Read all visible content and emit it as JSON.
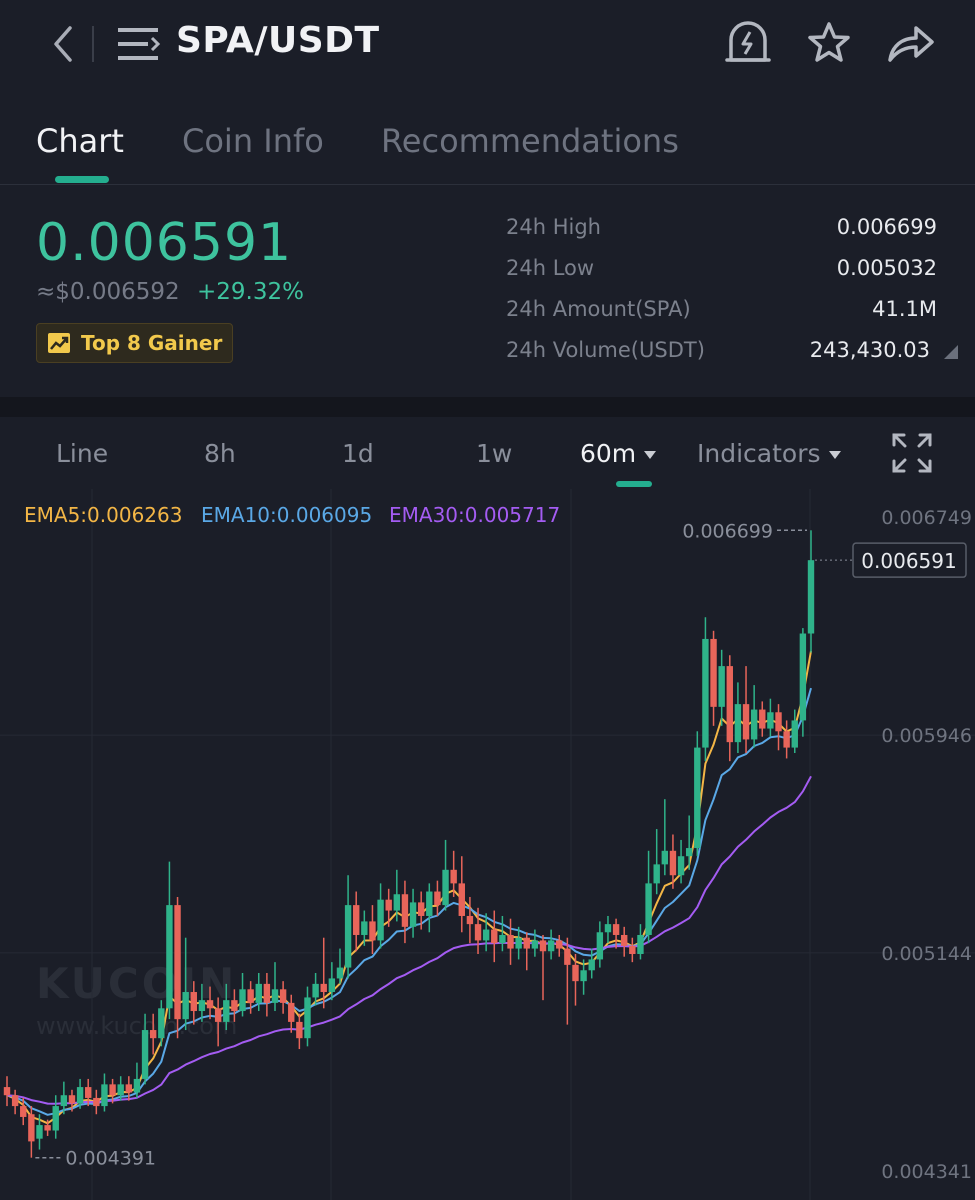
{
  "header": {
    "title": "SPA/USDT",
    "icons": [
      "back-icon",
      "menu-icon",
      "price-alert-icon",
      "favorite-star-icon",
      "share-icon"
    ]
  },
  "tabs": [
    {
      "label": "Chart",
      "active": true
    },
    {
      "label": "Coin Info",
      "active": false
    },
    {
      "label": "Recommendations",
      "active": false
    }
  ],
  "ticker": {
    "price": "0.006591",
    "usd_price": "≈$0.006592",
    "change": "+29.32%",
    "badge": "Top 8 Gainer",
    "stats": [
      {
        "label": "24h High",
        "value": "0.006699"
      },
      {
        "label": "24h Low",
        "value": "0.005032"
      },
      {
        "label": "24h Amount(SPA)",
        "value": "41.1M"
      },
      {
        "label": "24h Volume(USDT)",
        "value": "243,430.03"
      }
    ]
  },
  "timeframes": [
    {
      "label": "Line",
      "active": false
    },
    {
      "label": "8h",
      "active": false
    },
    {
      "label": "1d",
      "active": false
    },
    {
      "label": "1w",
      "active": false
    },
    {
      "label": "60m",
      "active": true,
      "dropdown": true
    },
    {
      "label": "Indicators",
      "active": false,
      "dropdown": true
    }
  ],
  "colors": {
    "up": "#2fb38a",
    "down": "#e8655a",
    "ema5": "#f3b646",
    "ema10": "#5aa8e6",
    "ema30": "#a45cf2",
    "accent": "#24ae8f"
  },
  "watermark": {
    "logo": "KUCOIN",
    "url": "www.kucoin.com"
  },
  "chart_data": {
    "type": "candlestick",
    "interval": "60m",
    "indicators": [
      {
        "name": "EMA5",
        "label": "EMA5:0.006263"
      },
      {
        "name": "EMA10",
        "label": "EMA10:0.006095"
      },
      {
        "name": "EMA30",
        "label": "EMA30:0.005717"
      }
    ],
    "y_ticks": [
      "0.006749",
      "0.005946",
      "0.005144",
      "0.004341"
    ],
    "ylim": [
      0.004341,
      0.006749
    ],
    "last_price_label": "0.006591",
    "max_label": "0.006699",
    "min_label": "0.004391",
    "candles": [
      [
        0.00465,
        0.00462,
        0.00469,
        0.00458
      ],
      [
        0.00462,
        0.00458,
        0.00464,
        0.00455
      ],
      [
        0.00458,
        0.00454,
        0.00461,
        0.00451
      ],
      [
        0.00455,
        0.00445,
        0.00458,
        0.00439
      ],
      [
        0.00446,
        0.00451,
        0.00455,
        0.00442
      ],
      [
        0.00451,
        0.00449,
        0.00453,
        0.00447
      ],
      [
        0.00449,
        0.00458,
        0.00462,
        0.00446
      ],
      [
        0.00458,
        0.00462,
        0.00467,
        0.00455
      ],
      [
        0.00462,
        0.00459,
        0.00464,
        0.00456
      ],
      [
        0.00459,
        0.00465,
        0.00468,
        0.00457
      ],
      [
        0.00465,
        0.00461,
        0.00468,
        0.00458
      ],
      [
        0.00461,
        0.00458,
        0.00464,
        0.00455
      ],
      [
        0.00458,
        0.00466,
        0.0047,
        0.00456
      ],
      [
        0.00466,
        0.00462,
        0.00468,
        0.00459
      ],
      [
        0.00462,
        0.00466,
        0.00469,
        0.0046
      ],
      [
        0.00466,
        0.00463,
        0.00469,
        0.0046
      ],
      [
        0.00463,
        0.00468,
        0.00474,
        0.00461
      ],
      [
        0.00468,
        0.00486,
        0.00492,
        0.00466
      ],
      [
        0.00486,
        0.00483,
        0.00492,
        0.00477
      ],
      [
        0.00483,
        0.00494,
        0.00497,
        0.0048
      ],
      [
        0.00494,
        0.00532,
        0.00548,
        0.0049
      ],
      [
        0.00532,
        0.0049,
        0.00535,
        0.00483
      ],
      [
        0.0049,
        0.005,
        0.0052,
        0.00486
      ],
      [
        0.005,
        0.00493,
        0.00504,
        0.00488
      ],
      [
        0.00493,
        0.00497,
        0.00503,
        0.00489
      ],
      [
        0.00497,
        0.00494,
        0.00502,
        0.0049
      ],
      [
        0.00494,
        0.00489,
        0.00498,
        0.0048
      ],
      [
        0.00489,
        0.00497,
        0.00503,
        0.00486
      ],
      [
        0.00497,
        0.00493,
        0.00501,
        0.00489
      ],
      [
        0.00493,
        0.00501,
        0.00507,
        0.00491
      ],
      [
        0.00501,
        0.00496,
        0.00504,
        0.00492
      ],
      [
        0.00496,
        0.00503,
        0.00507,
        0.00493
      ],
      [
        0.00503,
        0.00496,
        0.00507,
        0.00491
      ],
      [
        0.00496,
        0.00501,
        0.00511,
        0.00493
      ],
      [
        0.00501,
        0.00496,
        0.00504,
        0.00492
      ],
      [
        0.00496,
        0.00489,
        0.00499,
        0.00485
      ],
      [
        0.00489,
        0.00483,
        0.00492,
        0.00479
      ],
      [
        0.00483,
        0.00498,
        0.00502,
        0.0048
      ],
      [
        0.00498,
        0.00503,
        0.00507,
        0.00495
      ],
      [
        0.00503,
        0.005,
        0.0052,
        0.00494
      ],
      [
        0.005,
        0.00505,
        0.00511,
        0.00497
      ],
      [
        0.00505,
        0.00509,
        0.00516,
        0.00503
      ],
      [
        0.00509,
        0.00532,
        0.00543,
        0.00505
      ],
      [
        0.00532,
        0.00521,
        0.00537,
        0.00515
      ],
      [
        0.00521,
        0.00526,
        0.0053,
        0.00517
      ],
      [
        0.00526,
        0.00519,
        0.00532,
        0.00514
      ],
      [
        0.00519,
        0.00534,
        0.0054,
        0.00516
      ],
      [
        0.00534,
        0.0053,
        0.00538,
        0.00524
      ],
      [
        0.0053,
        0.00536,
        0.00545,
        0.00526
      ],
      [
        0.00536,
        0.00524,
        0.00541,
        0.00518
      ],
      [
        0.00524,
        0.00533,
        0.00538,
        0.0052
      ],
      [
        0.00533,
        0.00528,
        0.00537,
        0.00523
      ],
      [
        0.00528,
        0.00537,
        0.0054,
        0.00522
      ],
      [
        0.00537,
        0.00532,
        0.00541,
        0.00528
      ],
      [
        0.00532,
        0.00545,
        0.00556,
        0.0053
      ],
      [
        0.00545,
        0.0054,
        0.00552,
        0.00535
      ],
      [
        0.0054,
        0.00528,
        0.0055,
        0.00522
      ],
      [
        0.00528,
        0.00525,
        0.00535,
        0.00518
      ],
      [
        0.00525,
        0.00519,
        0.00531,
        0.00514
      ],
      [
        0.00519,
        0.00523,
        0.00529,
        0.00515
      ],
      [
        0.00523,
        0.00518,
        0.0053,
        0.00511
      ],
      [
        0.00518,
        0.00521,
        0.00528,
        0.00515
      ],
      [
        0.00521,
        0.00516,
        0.00527,
        0.0051
      ],
      [
        0.00516,
        0.0052,
        0.00524,
        0.00512
      ],
      [
        0.0052,
        0.00516,
        0.00522,
        0.00508
      ],
      [
        0.00516,
        0.00519,
        0.00523,
        0.00513
      ],
      [
        0.00519,
        0.00515,
        0.00521,
        0.00497
      ],
      [
        0.00515,
        0.00519,
        0.00523,
        0.00512
      ],
      [
        0.00519,
        0.00516,
        0.00521,
        0.00513
      ],
      [
        0.00516,
        0.0051,
        0.0052,
        0.00488
      ],
      [
        0.0051,
        0.00504,
        0.00514,
        0.00495
      ],
      [
        0.00504,
        0.00508,
        0.00512,
        0.00499
      ],
      [
        0.00508,
        0.00512,
        0.00516,
        0.00505
      ],
      [
        0.00512,
        0.00522,
        0.00526,
        0.00509
      ],
      [
        0.00522,
        0.00525,
        0.00528,
        0.00518
      ],
      [
        0.00525,
        0.00521,
        0.00527,
        0.00516
      ],
      [
        0.00521,
        0.00517,
        0.00524,
        0.00513
      ],
      [
        0.00517,
        0.00514,
        0.0052,
        0.00511
      ],
      [
        0.00514,
        0.00521,
        0.00525,
        0.00512
      ],
      [
        0.00521,
        0.0054,
        0.00552,
        0.00518
      ],
      [
        0.0054,
        0.00547,
        0.0056,
        0.00536
      ],
      [
        0.00547,
        0.00552,
        0.00571,
        0.00543
      ],
      [
        0.00552,
        0.00543,
        0.00558,
        0.00538
      ],
      [
        0.00543,
        0.0055,
        0.00556,
        0.0054
      ],
      [
        0.0055,
        0.00553,
        0.00565,
        0.00545
      ],
      [
        0.00553,
        0.0059,
        0.00596,
        0.0055
      ],
      [
        0.0059,
        0.0063,
        0.00638,
        0.00585
      ],
      [
        0.0063,
        0.00605,
        0.00633,
        0.00598
      ],
      [
        0.00605,
        0.0062,
        0.00626,
        0.00598
      ],
      [
        0.0062,
        0.00592,
        0.00624,
        0.00585
      ],
      [
        0.00592,
        0.00606,
        0.00614,
        0.00588
      ],
      [
        0.00606,
        0.00593,
        0.0062,
        0.00588
      ],
      [
        0.00593,
        0.00604,
        0.00613,
        0.0059
      ],
      [
        0.00604,
        0.00597,
        0.00607,
        0.00594
      ],
      [
        0.00597,
        0.00603,
        0.00608,
        0.00594
      ],
      [
        0.00603,
        0.00596,
        0.00606,
        0.00589
      ],
      [
        0.00596,
        0.0059,
        0.006,
        0.00586
      ],
      [
        0.0059,
        0.006,
        0.00604,
        0.00588
      ],
      [
        0.006,
        0.00632,
        0.00634,
        0.00594
      ],
      [
        0.00632,
        0.00659,
        0.0067,
        0.00625
      ]
    ]
  }
}
